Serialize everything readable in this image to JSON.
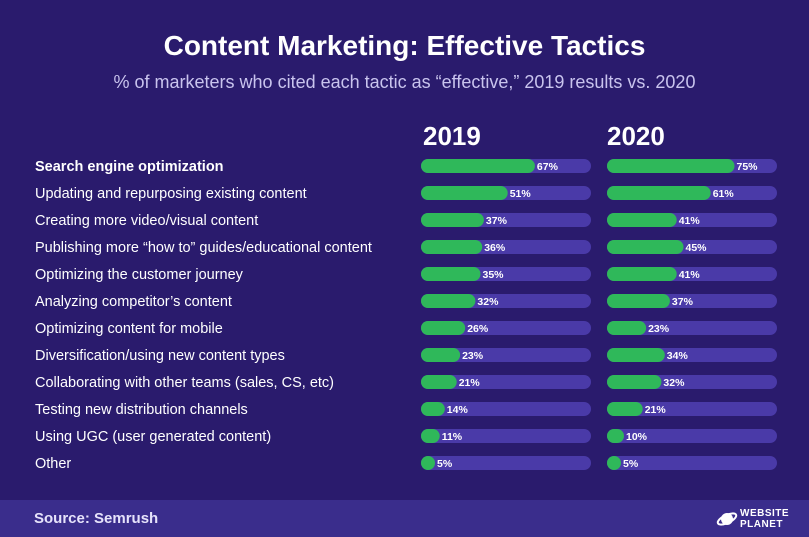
{
  "title": "Content Marketing: Effective Tactics",
  "subtitle": "% of marketers who cited each tactic as “effective,” 2019 results vs. 2020",
  "years": [
    "2019",
    "2020"
  ],
  "source": "Source: Semrush",
  "logo": {
    "line1": "WEBSITE",
    "line2": "PLANET"
  },
  "colors": {
    "background": "#2a1b6d",
    "bar_track": "#4a3aa8",
    "bar_fill": "#2fb85a",
    "footer": "#3a2d8c"
  },
  "chart_data": {
    "type": "bar",
    "orientation": "horizontal",
    "ylim": [
      0,
      100
    ],
    "categories": [
      "Search engine optimization",
      "Updating and repurposing existing content",
      "Creating more video/visual content",
      "Publishing more “how to” guides/educational content",
      "Optimizing the customer journey",
      "Analyzing competitor’s content",
      "Optimizing content for mobile",
      "Diversification/using new content types",
      "Collaborating with other teams (sales, CS, etc)",
      "Testing new distribution channels",
      "Using UGC (user generated content)",
      "Other"
    ],
    "series": [
      {
        "name": "2019",
        "values": [
          67,
          51,
          37,
          36,
          35,
          32,
          26,
          23,
          21,
          14,
          11,
          5
        ]
      },
      {
        "name": "2020",
        "values": [
          75,
          61,
          41,
          45,
          41,
          37,
          23,
          34,
          32,
          21,
          10,
          5
        ]
      }
    ]
  }
}
